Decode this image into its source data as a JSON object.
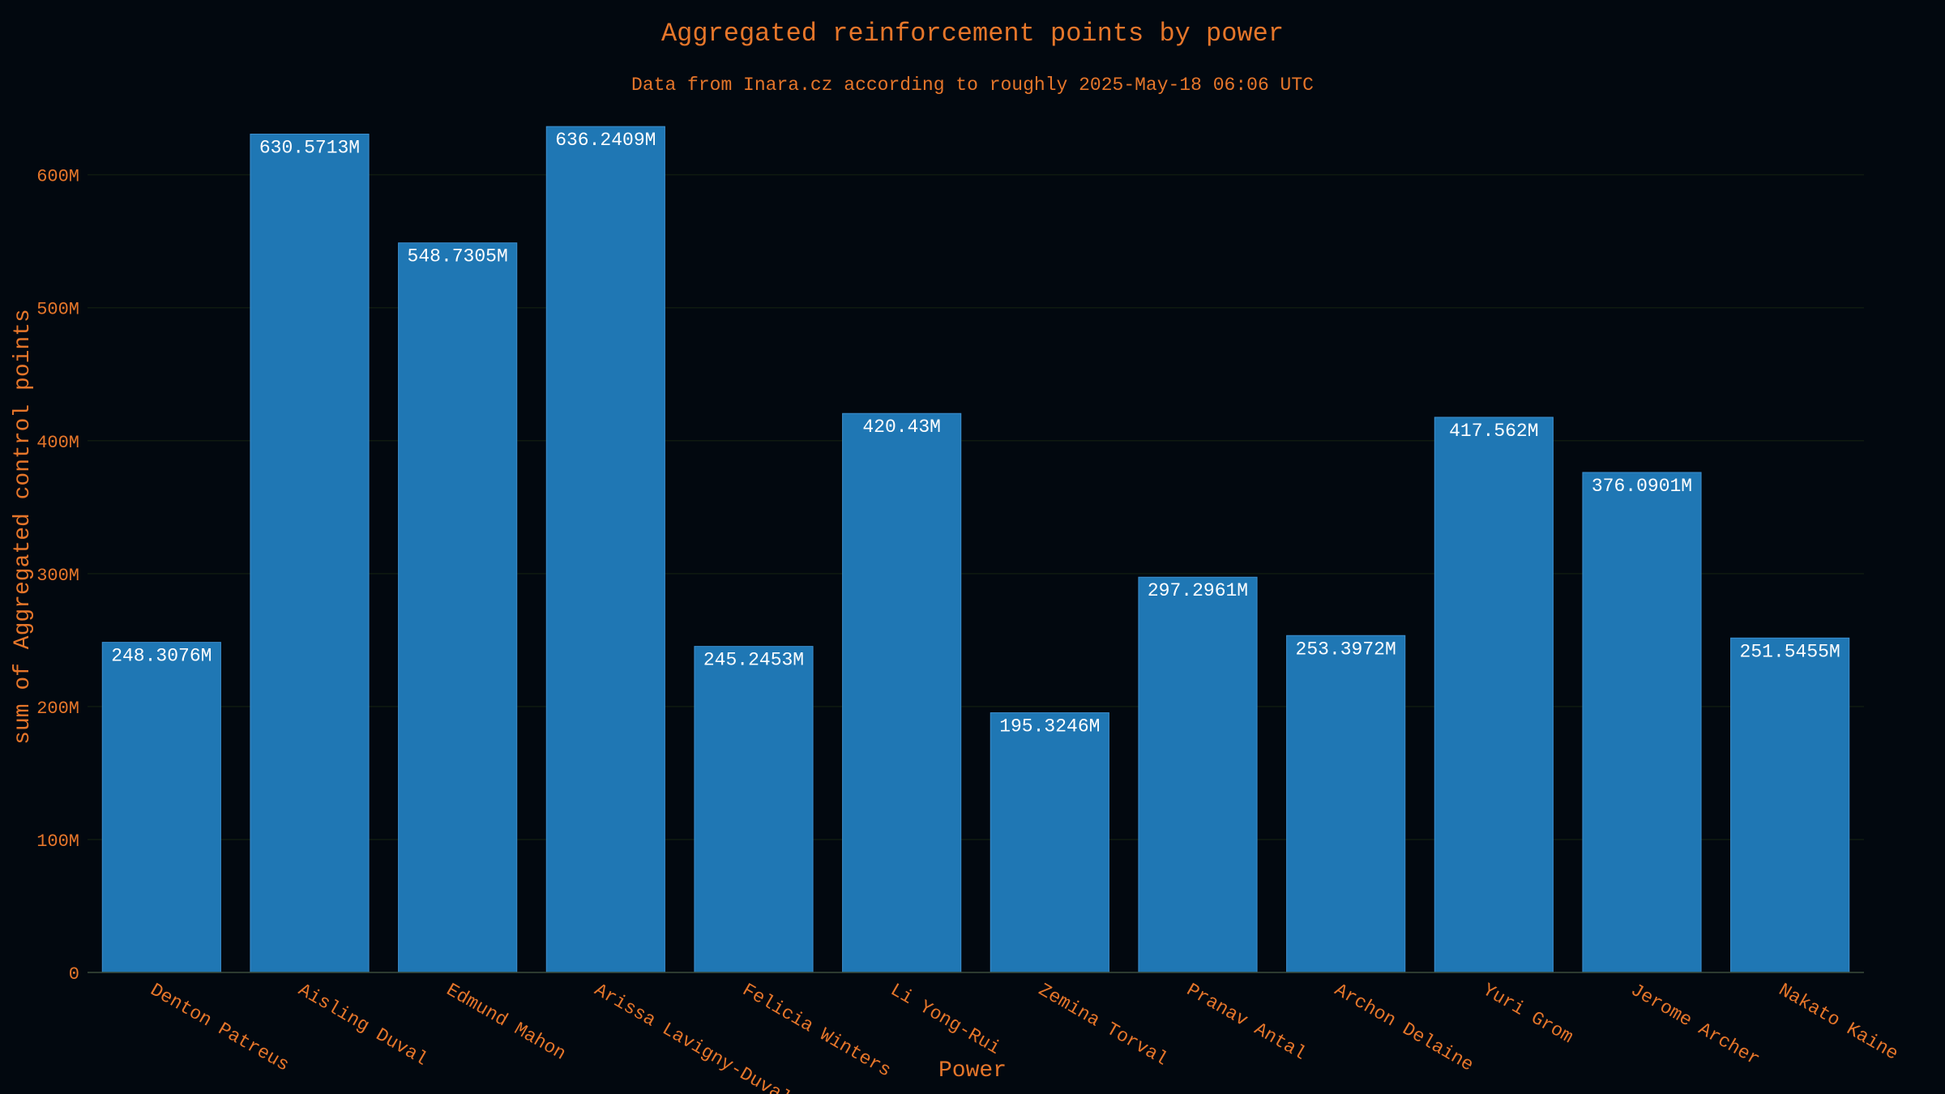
{
  "chart_data": {
    "type": "bar",
    "title": "Aggregated reinforcement points by power",
    "subtitle": "Data from Inara.cz according to roughly 2025-May-18 06:06 UTC",
    "xlabel": "Power",
    "ylabel": "sum of Aggregated control points",
    "ylim": [
      0,
      640000000
    ],
    "yticks": [
      {
        "value": 0,
        "label": "0"
      },
      {
        "value": 100000000,
        "label": "100M"
      },
      {
        "value": 200000000,
        "label": "200M"
      },
      {
        "value": 300000000,
        "label": "300M"
      },
      {
        "value": 400000000,
        "label": "400M"
      },
      {
        "value": 500000000,
        "label": "500M"
      },
      {
        "value": 600000000,
        "label": "600M"
      }
    ],
    "grid": true,
    "legend": "none",
    "categories": [
      "Denton Patreus",
      "Aisling Duval",
      "Edmund Mahon",
      "Arissa Lavigny-Duval",
      "Felicia Winters",
      "Li Yong-Rui",
      "Zemina Torval",
      "Pranav Antal",
      "Archon Delaine",
      "Yuri Grom",
      "Jerome Archer",
      "Nakato Kaine"
    ],
    "values": [
      248307600,
      630571300,
      548730500,
      636240900,
      245245300,
      420430000,
      195324600,
      297296100,
      253397200,
      417562000,
      376090100,
      251545500
    ],
    "value_labels": [
      "248.3076M",
      "630.5713M",
      "548.7305M",
      "636.2409M",
      "245.2453M",
      "420.43M",
      "195.3246M",
      "297.2961M",
      "253.3972M",
      "417.562M",
      "376.0901M",
      "251.5455M"
    ]
  },
  "colors": {
    "background": "#02080f",
    "bar": "#1f77b4",
    "text": "#e6762a",
    "bar_label": "#ffffff",
    "grid": "#0f1a10",
    "axis": "#3a4a3a"
  }
}
